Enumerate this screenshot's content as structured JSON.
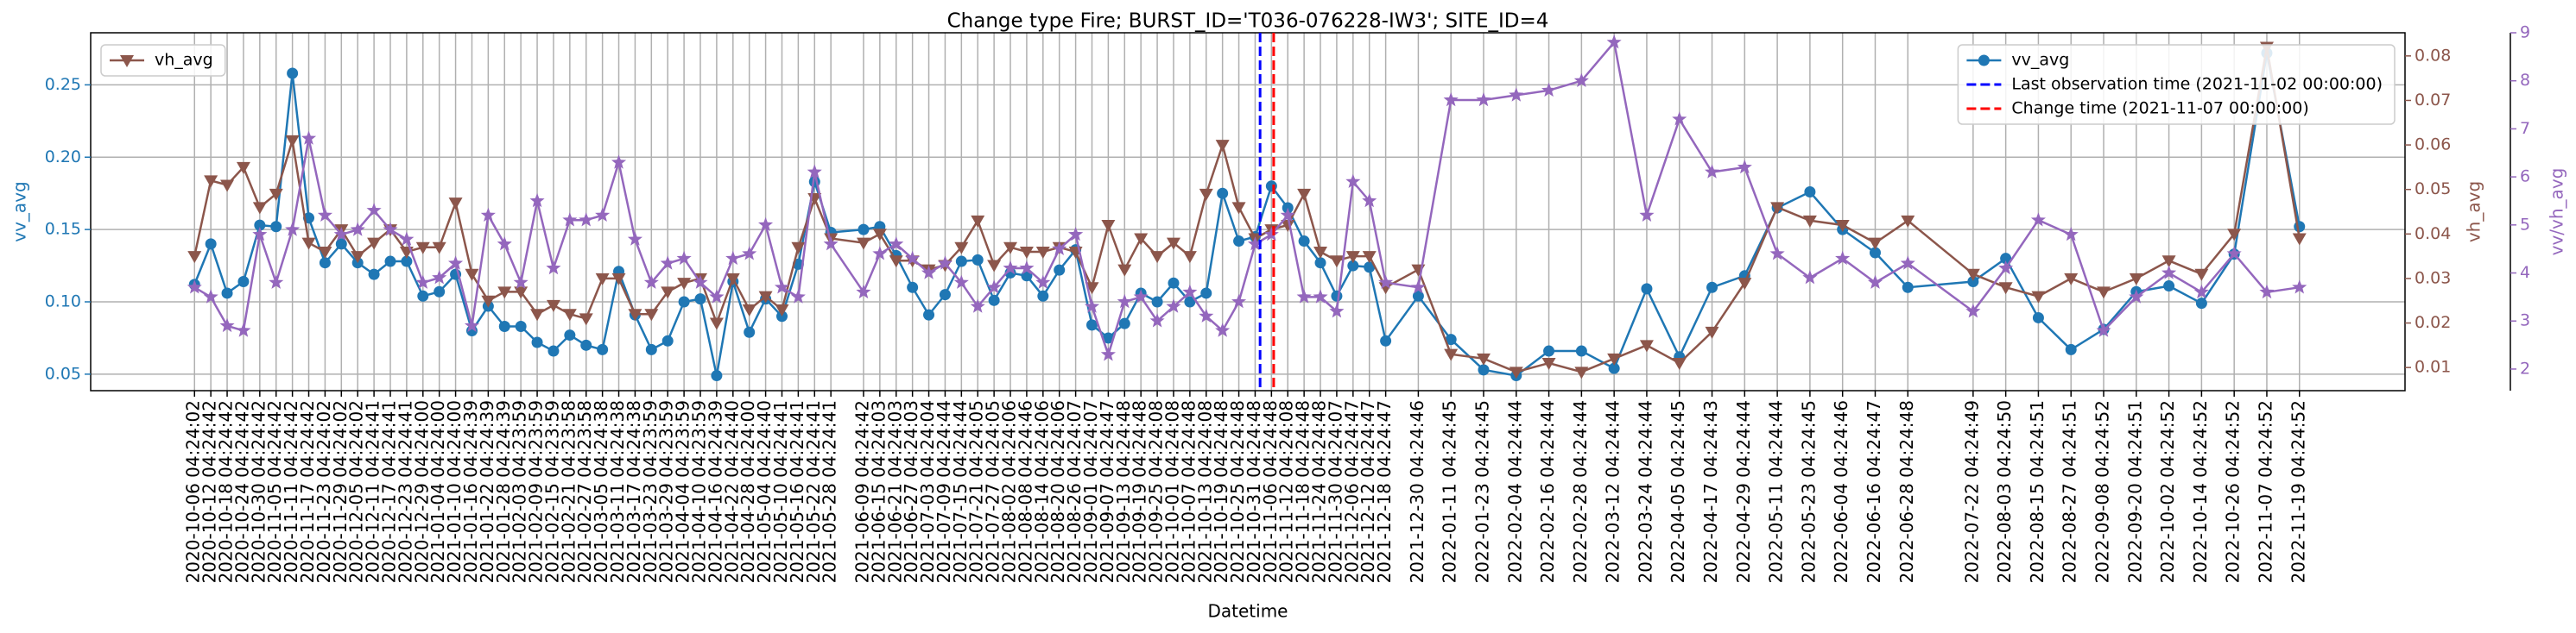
{
  "chart_data": {
    "type": "line",
    "title": "Change type Fire; BURST_ID='T036-076228-IW3'; SITE_ID=4",
    "xlabel": "Datetime",
    "ylabel": "vv_avg",
    "y2label": "vh_avg",
    "y3label": "vv/vh_avg",
    "grid": true,
    "x": [
      "2020-10-06 04:24:02",
      "2020-10-12 04:24:42",
      "2020-10-18 04:24:42",
      "2020-10-24 04:24:42",
      "2020-10-30 04:24:42",
      "2020-11-05 04:24:42",
      "2020-11-11 04:24:42",
      "2020-11-17 04:24:42",
      "2020-11-23 04:24:02",
      "2020-11-29 04:24:02",
      "2020-12-05 04:24:02",
      "2020-12-11 04:24:41",
      "2020-12-17 04:24:41",
      "2020-12-23 04:24:41",
      "2020-12-29 04:24:00",
      "2021-01-04 04:24:00",
      "2021-01-10 04:24:00",
      "2021-01-16 04:24:39",
      "2021-01-22 04:24:39",
      "2021-01-28 04:24:39",
      "2021-02-03 04:23:59",
      "2021-02-09 04:23:59",
      "2021-02-15 04:23:59",
      "2021-02-21 04:23:58",
      "2021-02-27 04:23:58",
      "2021-03-05 04:24:38",
      "2021-03-11 04:24:38",
      "2021-03-17 04:24:38",
      "2021-03-23 04:23:59",
      "2021-03-29 04:23:59",
      "2021-04-04 04:23:59",
      "2021-04-10 04:23:59",
      "2021-04-16 04:24:39",
      "2021-04-22 04:24:40",
      "2021-04-28 04:24:00",
      "2021-05-04 04:24:40",
      "2021-05-10 04:24:41",
      "2021-05-16 04:24:41",
      "2021-05-22 04:24:41",
      "2021-05-28 04:24:41",
      "2021-06-09 04:24:42",
      "2021-06-15 04:24:03",
      "2021-06-21 04:24:03",
      "2021-06-27 04:24:03",
      "2021-07-03 04:24:04",
      "2021-07-09 04:24:44",
      "2021-07-15 04:24:44",
      "2021-07-21 04:24:05",
      "2021-07-27 04:24:05",
      "2021-08-02 04:24:06",
      "2021-08-08 04:24:46",
      "2021-08-14 04:24:06",
      "2021-08-20 04:24:06",
      "2021-08-26 04:24:07",
      "2021-09-01 04:24:07",
      "2021-09-07 04:24:47",
      "2021-09-13 04:24:48",
      "2021-09-19 04:24:48",
      "2021-09-25 04:24:08",
      "2021-10-01 04:24:08",
      "2021-10-07 04:24:48",
      "2021-10-13 04:24:08",
      "2021-10-19 04:24:48",
      "2021-10-25 04:24:48",
      "2021-10-31 04:24:48",
      "2021-11-06 04:24:48",
      "2021-11-12 04:24:08",
      "2021-11-18 04:24:48",
      "2021-11-24 04:24:48",
      "2021-11-30 04:24:07",
      "2021-12-06 04:24:47",
      "2021-12-12 04:24:47",
      "2021-12-18 04:24:47",
      "2021-12-30 04:24:46",
      "2022-01-11 04:24:45",
      "2022-01-23 04:24:45",
      "2022-02-04 04:24:44",
      "2022-02-16 04:24:44",
      "2022-02-28 04:24:44",
      "2022-03-12 04:24:44",
      "2022-03-24 04:24:44",
      "2022-04-05 04:24:45",
      "2022-04-17 04:24:43",
      "2022-04-29 04:24:44",
      "2022-05-11 04:24:44",
      "2022-05-23 04:24:45",
      "2022-06-04 04:24:46",
      "2022-06-16 04:24:47",
      "2022-06-28 04:24:48",
      "2022-07-22 04:24:49",
      "2022-08-03 04:24:50",
      "2022-08-15 04:24:51",
      "2022-08-27 04:24:51",
      "2022-09-08 04:24:52",
      "2022-09-20 04:24:51",
      "2022-10-02 04:24:52",
      "2022-10-14 04:24:52",
      "2022-10-26 04:24:52",
      "2022-11-07 04:24:52",
      "2022-11-19 04:24:52"
    ],
    "xlim": [
      "2020-08-29",
      "2022-12-28"
    ],
    "ylim": [
      0.0386,
      0.286
    ],
    "yticks": [
      0.05,
      {
        "value": 0.1,
        "label": "0.10"
      },
      0.15,
      {
        "value": 0.2,
        "label": "0.20"
      },
      0.25
    ],
    "y2lim": [
      0.0048,
      0.0852
    ],
    "y2ticks": [
      0.01,
      0.02,
      0.03,
      0.04,
      0.05,
      0.06,
      0.07,
      0.08
    ],
    "y3lim": [
      1.55,
      9.0
    ],
    "y3ticks": [
      2,
      3,
      4,
      5,
      6,
      7,
      8,
      9
    ],
    "series": [
      {
        "name": "vv_avg",
        "color": "#1f77b4",
        "marker": "circle",
        "axis": "y",
        "legend": "upper right",
        "values": [
          0.112,
          0.14,
          0.106,
          0.114,
          0.153,
          0.152,
          0.258,
          0.158,
          0.127,
          0.14,
          0.127,
          0.119,
          0.128,
          0.128,
          0.104,
          0.107,
          0.119,
          0.08,
          0.097,
          0.083,
          0.083,
          0.072,
          0.066,
          0.077,
          0.07,
          0.067,
          0.121,
          0.091,
          0.067,
          0.073,
          0.1,
          0.102,
          0.049,
          0.114,
          0.079,
          0.102,
          0.09,
          0.126,
          0.183,
          0.148,
          0.15,
          0.152,
          0.132,
          0.11,
          0.091,
          0.105,
          0.128,
          0.129,
          0.101,
          0.12,
          0.118,
          0.104,
          0.122,
          0.136,
          0.084,
          0.075,
          0.085,
          0.106,
          0.1,
          0.113,
          0.1,
          0.106,
          0.175,
          0.142,
          0.145,
          0.18,
          0.165,
          0.142,
          0.127,
          0.104,
          0.125,
          0.124,
          0.073,
          0.104,
          0.074,
          0.053,
          0.049,
          0.066,
          0.066,
          0.054,
          0.109,
          0.062,
          0.11,
          0.118,
          0.165,
          0.176,
          0.15,
          0.134,
          0.11,
          0.114,
          0.13,
          0.089,
          0.067,
          0.081,
          0.107,
          0.111,
          0.099,
          0.133,
          0.272,
          0.152
        ]
      },
      {
        "name": "vh_avg",
        "color": "#8c564b",
        "marker": "triangle-down",
        "axis": "y2",
        "legend": "upper left",
        "values": [
          0.035,
          0.052,
          0.051,
          0.055,
          0.046,
          0.049,
          0.061,
          0.038,
          0.036,
          0.041,
          0.035,
          0.038,
          0.041,
          0.036,
          0.037,
          0.037,
          0.047,
          0.031,
          0.025,
          0.027,
          0.027,
          0.022,
          0.024,
          0.022,
          0.021,
          0.03,
          0.03,
          0.022,
          0.022,
          0.027,
          0.029,
          0.03,
          0.02,
          0.03,
          0.023,
          0.026,
          0.023,
          0.037,
          0.048,
          0.039,
          0.038,
          0.04,
          0.034,
          0.034,
          0.032,
          0.033,
          0.037,
          0.043,
          0.033,
          0.037,
          0.036,
          0.036,
          0.037,
          0.036,
          0.028,
          0.042,
          0.032,
          0.039,
          0.035,
          0.038,
          0.035,
          0.049,
          0.06,
          0.046,
          0.039,
          0.041,
          0.042,
          0.049,
          0.036,
          0.034,
          0.035,
          0.035,
          0.028,
          0.032,
          0.013,
          0.012,
          0.009,
          0.011,
          0.009,
          0.012,
          0.015,
          0.011,
          0.018,
          0.029,
          0.046,
          0.043,
          0.042,
          0.038,
          0.043,
          0.031,
          0.028,
          0.026,
          0.03,
          0.027,
          0.03,
          0.034,
          0.031,
          0.04,
          0.082,
          0.039
        ]
      },
      {
        "name": "vv/vh_avg",
        "color": "#9467bd",
        "marker": "star",
        "axis": "y3",
        "values": [
          3.7,
          3.5,
          2.9,
          2.8,
          4.8,
          3.8,
          4.9,
          6.8,
          5.2,
          4.8,
          4.9,
          5.3,
          4.9,
          4.7,
          3.8,
          3.9,
          4.2,
          2.9,
          5.2,
          4.6,
          3.8,
          5.5,
          4.1,
          5.1,
          5.1,
          5.2,
          6.3,
          4.7,
          3.8,
          4.2,
          4.3,
          3.8,
          3.5,
          4.3,
          4.4,
          5.0,
          3.7,
          3.5,
          6.1,
          4.6,
          3.6,
          4.4,
          4.6,
          4.3,
          4.0,
          4.2,
          3.8,
          3.3,
          3.7,
          4.1,
          4.1,
          3.8,
          4.5,
          4.8,
          3.3,
          2.3,
          3.4,
          3.5,
          3.0,
          3.3,
          3.6,
          3.1,
          2.8,
          3.4,
          4.6,
          4.8,
          5.2,
          3.5,
          3.5,
          3.2,
          5.9,
          5.5,
          3.8,
          3.7,
          7.6,
          7.6,
          7.7,
          7.8,
          8.0,
          8.8,
          5.2,
          7.2,
          6.1,
          6.2,
          4.4,
          3.9,
          4.3,
          3.8,
          4.2,
          3.2,
          4.1,
          5.1,
          4.8,
          2.8,
          3.5,
          4.0,
          3.6,
          4.4,
          3.6,
          3.7
        ]
      }
    ],
    "vlines": [
      {
        "name": "Last observation time (2021-11-02 00:00:00)",
        "x": "2021-11-02 00:00:00",
        "color": "#0000ff",
        "legend": "upper right"
      },
      {
        "name": "Change time (2021-11-07 00:00:00)",
        "x": "2021-11-07 00:00:00",
        "color": "#ff0000",
        "legend": "upper right"
      }
    ]
  }
}
